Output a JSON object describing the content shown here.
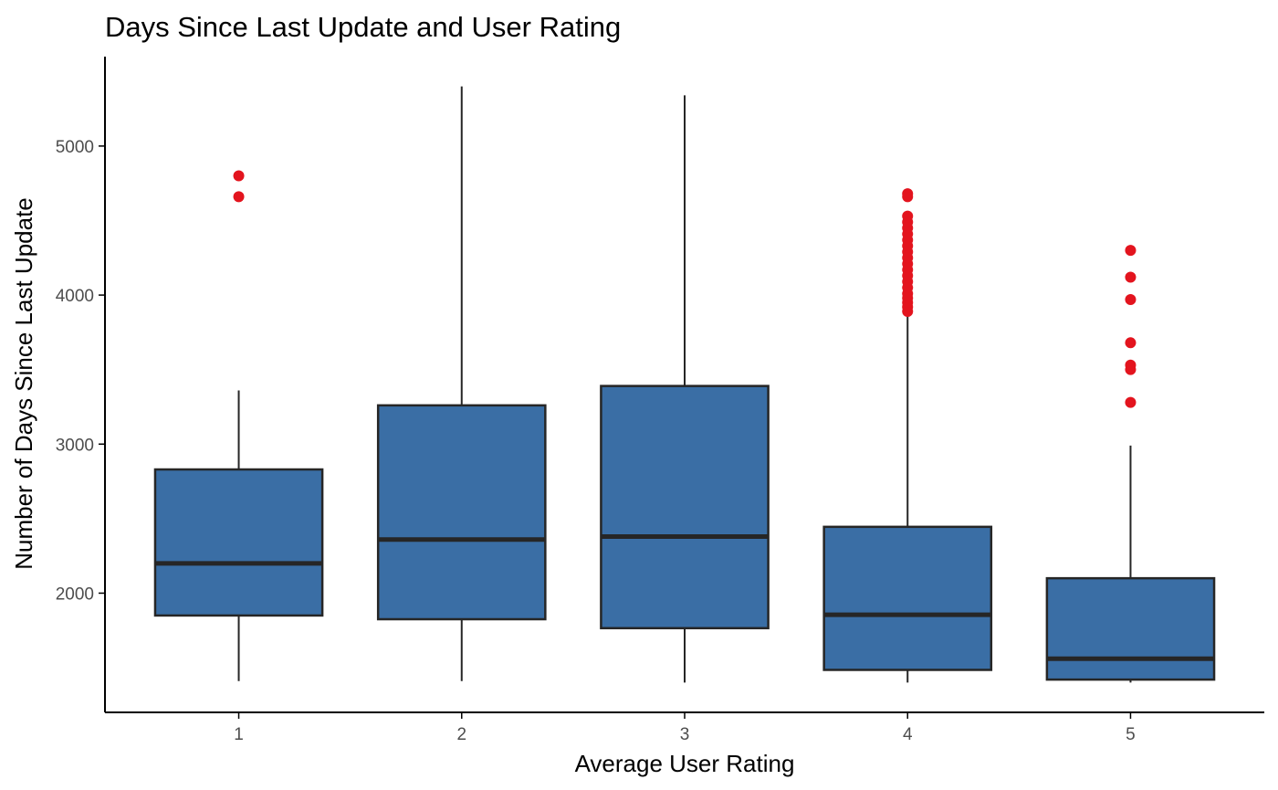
{
  "chart_data": {
    "type": "boxplot",
    "title": "Days Since Last Update and User Rating",
    "xlabel": "Average User Rating",
    "ylabel": "Number of Days Since Last Update",
    "categories": [
      "1",
      "2",
      "3",
      "4",
      "5"
    ],
    "ylim": [
      1200,
      5600
    ],
    "yticks": [
      2000,
      3000,
      4000,
      5000
    ],
    "grid": false,
    "legend": "none",
    "colors": {
      "box_fill": "#3A6EA5",
      "box_stroke": "#262626",
      "outlier": "#E3141E",
      "axis": "#000000"
    },
    "boxes": [
      {
        "category": "1",
        "whisker_low": 1410,
        "q1": 1850,
        "median": 2200,
        "q3": 2830,
        "whisker_high": 3360,
        "outliers": [
          4660,
          4800
        ]
      },
      {
        "category": "2",
        "whisker_low": 1410,
        "q1": 1825,
        "median": 2360,
        "q3": 3260,
        "whisker_high": 5400,
        "outliers": []
      },
      {
        "category": "3",
        "whisker_low": 1400,
        "q1": 1765,
        "median": 2380,
        "q3": 3390,
        "whisker_high": 5340,
        "outliers": []
      },
      {
        "category": "4",
        "whisker_low": 1400,
        "q1": 1485,
        "median": 1855,
        "q3": 2445,
        "whisker_high": 3880,
        "outliers": [
          3890,
          3920,
          3950,
          3980,
          4010,
          4050,
          4090,
          4130,
          4170,
          4210,
          4250,
          4290,
          4330,
          4370,
          4410,
          4450,
          4490,
          4530,
          4660,
          4680
        ]
      },
      {
        "category": "5",
        "whisker_low": 1400,
        "q1": 1420,
        "median": 1560,
        "q3": 2100,
        "whisker_high": 2990,
        "outliers": [
          3280,
          3500,
          3530,
          3680,
          3970,
          4120,
          4300
        ]
      }
    ]
  }
}
